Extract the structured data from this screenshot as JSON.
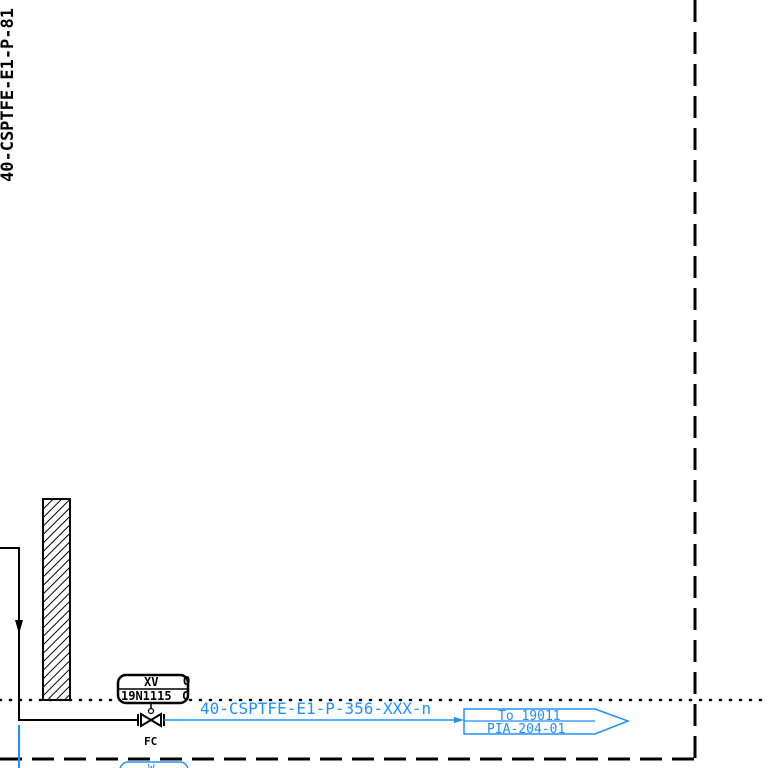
{
  "colors": {
    "line_black": "#000000",
    "line_blue": "#1e90ff",
    "hatch": "#000000",
    "background": "#ffffff"
  },
  "labels": {
    "vertical_line_tag": "40-CSPTFE-E1-P-81",
    "valve_type": "XV",
    "valve_tag": "19N1115",
    "valve_letter_right_top": "O",
    "valve_letter_right_bottom": "C",
    "fail_mode": "FC",
    "line_tag": "40-CSPTFE-E1-P-356-XXX-n",
    "offpage_to": "To 19011",
    "offpage_ref": "PIA-204-01",
    "lower_bubble_partial": "W"
  }
}
